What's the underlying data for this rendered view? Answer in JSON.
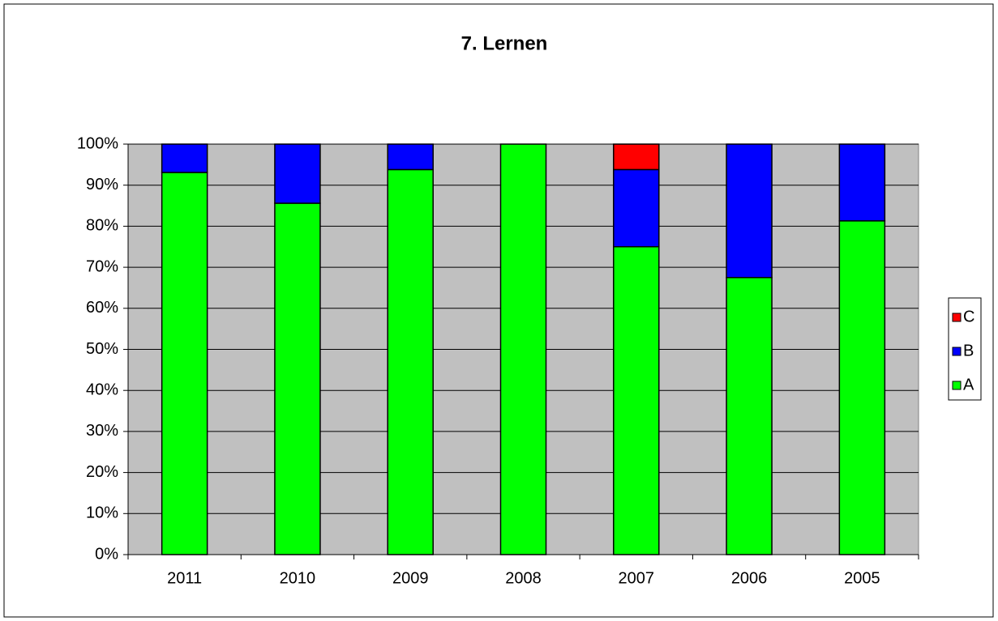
{
  "chart_data": {
    "type": "stacked_bar",
    "title": "7. Lernen",
    "categories": [
      "2011",
      "2010",
      "2009",
      "2008",
      "2007",
      "2006",
      "2005"
    ],
    "series": [
      {
        "name": "A",
        "color": "#00ff00",
        "values": [
          93.1,
          85.6,
          93.8,
          100,
          75,
          67.5,
          81.3
        ]
      },
      {
        "name": "B",
        "color": "#0000ff",
        "values": [
          6.9,
          14.4,
          6.2,
          0,
          18.8,
          32.5,
          18.7
        ]
      },
      {
        "name": "C",
        "color": "#ff0000",
        "values": [
          0,
          0,
          0,
          0,
          6.2,
          0,
          0
        ]
      }
    ],
    "ylim": [
      0,
      100
    ],
    "yticks": [
      {
        "value": 0,
        "label": "0%"
      },
      {
        "value": 10,
        "label": "10%"
      },
      {
        "value": 20,
        "label": "20%"
      },
      {
        "value": 30,
        "label": "30%"
      },
      {
        "value": 40,
        "label": "40%"
      },
      {
        "value": 50,
        "label": "50%"
      },
      {
        "value": 60,
        "label": "60%"
      },
      {
        "value": 70,
        "label": "70%"
      },
      {
        "value": 80,
        "label": "80%"
      },
      {
        "value": 90,
        "label": "90%"
      },
      {
        "value": 100,
        "label": "100%"
      }
    ],
    "grid": true,
    "legend": "right",
    "plot_background": "#c0c0c0"
  }
}
